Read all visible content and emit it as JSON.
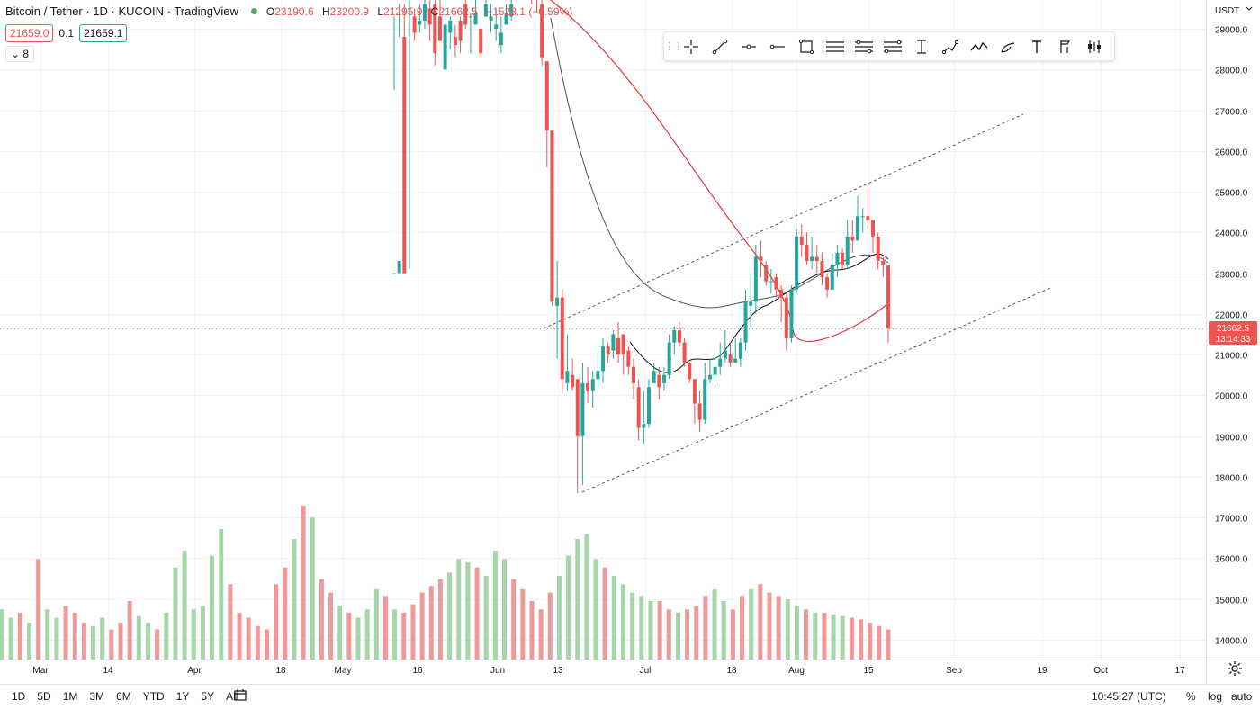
{
  "header": {
    "symbol": "Bitcoin / Tether · 1D · KUCOIN · TradingView",
    "open_label": "O",
    "open": "23190.6",
    "high_label": "H",
    "high": "23200.9",
    "low_label": "L",
    "low": "21295.9",
    "close_label": "C",
    "close": "21662.5",
    "change": "−1528.1 (−6.59%)",
    "sell_price": "21659.0",
    "spread": "0.1",
    "buy_price": "21659.1",
    "indicators_toggle": "8"
  },
  "toolbar": {
    "tools": [
      "crosshair-icon",
      "trend-line-icon",
      "horizontal-ray-icon",
      "horizontal-line-icon",
      "rectangle-icon",
      "parallel-channel-icon",
      "regression-trend-icon",
      "fib-retracement-icon",
      "price-range-icon",
      "path-icon",
      "polyline-icon",
      "brush-icon",
      "text-icon",
      "long-position-icon",
      "bar-pattern-icon"
    ]
  },
  "price_axis": {
    "currency": "USDT",
    "current_price": "21662.5",
    "countdown": "13:14:33"
  },
  "time_axis": {
    "labels": [
      "Mar",
      "14",
      "Apr",
      "18",
      "May",
      "16",
      "Jun",
      "13",
      "Jul",
      "18",
      "Aug",
      "15",
      "Sep",
      "19",
      "Oct",
      "17"
    ]
  },
  "bottom_bar": {
    "timeframes": [
      "1D",
      "5D",
      "1M",
      "3M",
      "6M",
      "YTD",
      "1Y",
      "5Y",
      "All"
    ],
    "clock": "10:45:27 (UTC)",
    "percent": "%",
    "log": "log",
    "auto": "auto"
  },
  "colors": {
    "up": "#26a69a",
    "down": "#ef5350",
    "volume_up": "#a5d6a7",
    "volume_down": "#ef9a9a",
    "ma_red": "#e53935",
    "ma_dark": "#555555",
    "ma_black": "#111111"
  },
  "chart_data": {
    "type": "candlestick",
    "title": "",
    "y_axis": {
      "min": 13800,
      "max": 29300,
      "ticks": [
        14000,
        15000,
        16000,
        17000,
        18000,
        19000,
        20000,
        21000,
        22000,
        23000,
        24000,
        25000,
        26000,
        27000,
        28000,
        29000
      ]
    },
    "candles": [
      [
        23000,
        23000,
        27500,
        29300
      ],
      [
        23000,
        23300,
        28800,
        29600
      ],
      [
        28800,
        23000,
        29600,
        23000
      ],
      [
        29500,
        29500,
        30000,
        23100
      ],
      [
        29300,
        28900,
        29500,
        28700
      ],
      [
        29100,
        29200,
        29600,
        28900
      ],
      [
        29200,
        29600,
        29900,
        29000
      ],
      [
        29500,
        29100,
        29700,
        28700
      ],
      [
        29600,
        28400,
        29700,
        28100
      ],
      [
        29300,
        28700,
        30200,
        28700
      ],
      [
        28000,
        29100,
        29800,
        28000
      ],
      [
        28900,
        29200,
        29300,
        28500
      ],
      [
        28800,
        28600,
        29100,
        28300
      ],
      [
        29200,
        28700,
        29300,
        28400
      ],
      [
        29600,
        29100,
        30100,
        29000
      ],
      [
        29300,
        29300,
        29400,
        28400
      ],
      [
        29100,
        29400,
        29800,
        29100
      ],
      [
        29000,
        28400,
        29000,
        28300
      ],
      [
        29300,
        29600,
        30000,
        29300
      ],
      [
        29200,
        29300,
        29600,
        28900
      ],
      [
        29000,
        29100,
        29500,
        28700
      ],
      [
        28600,
        28900,
        29300,
        28400
      ],
      [
        29100,
        29400,
        29600,
        29100
      ],
      [
        29300,
        29600,
        29800,
        29200
      ],
      [
        29800,
        29800,
        30200,
        29700
      ],
      [
        30500,
        30100,
        31500,
        29900
      ],
      [
        30300,
        29900,
        30400,
        29800
      ],
      [
        31400,
        30100,
        31700,
        29600
      ],
      [
        30000,
        29800,
        30200,
        29400
      ],
      [
        29600,
        28300,
        29800,
        28100
      ],
      [
        28200,
        26500,
        28200,
        25600
      ],
      [
        26500,
        22300,
        26500,
        22200
      ],
      [
        22200,
        22400,
        23300,
        20900
      ],
      [
        22400,
        20400,
        22600,
        20100
      ],
      [
        20300,
        20600,
        21500,
        20100
      ],
      [
        20500,
        20200,
        20900,
        20100
      ],
      [
        20400,
        19000,
        20400,
        17600
      ],
      [
        19000,
        20300,
        20800,
        17800
      ],
      [
        20300,
        20100,
        20700,
        19800
      ],
      [
        20100,
        20400,
        20600,
        19700
      ],
      [
        20400,
        20600,
        21200,
        20200
      ],
      [
        20600,
        21200,
        21400,
        20300
      ],
      [
        21200,
        21000,
        21300,
        20800
      ],
      [
        21100,
        21500,
        21600,
        20900
      ],
      [
        21400,
        21000,
        21800,
        20800
      ],
      [
        21500,
        21000,
        21500,
        20500
      ],
      [
        21100,
        20700,
        21200,
        20500
      ],
      [
        20700,
        20300,
        20900,
        19900
      ],
      [
        20200,
        19200,
        20400,
        18900
      ],
      [
        19200,
        19300,
        20100,
        18800
      ],
      [
        19300,
        20200,
        20400,
        19200
      ],
      [
        20300,
        20600,
        20800,
        20300
      ],
      [
        20500,
        20200,
        20700,
        19900
      ],
      [
        20300,
        20500,
        20700,
        20100
      ],
      [
        20500,
        21300,
        21500,
        20400
      ],
      [
        21300,
        21600,
        21700,
        21000
      ],
      [
        21600,
        21300,
        21800,
        21200
      ],
      [
        21300,
        20800,
        21400,
        20700
      ],
      [
        20800,
        20400,
        20800,
        20300
      ],
      [
        20400,
        19800,
        20400,
        19300
      ],
      [
        19800,
        19400,
        20100,
        19100
      ],
      [
        19400,
        20400,
        20800,
        19300
      ],
      [
        20400,
        20500,
        20900,
        20300
      ],
      [
        20500,
        20700,
        21000,
        20300
      ],
      [
        20700,
        20900,
        21300,
        20500
      ],
      [
        20900,
        21100,
        21600,
        20800
      ],
      [
        21000,
        20800,
        21300,
        20700
      ],
      [
        20800,
        20900,
        21400,
        20800
      ],
      [
        20900,
        21300,
        21400,
        20700
      ],
      [
        21300,
        22300,
        22600,
        21100
      ],
      [
        22200,
        22300,
        23000,
        21700
      ],
      [
        22300,
        23400,
        23700,
        22000
      ],
      [
        23400,
        23300,
        23800,
        22900
      ],
      [
        23200,
        22800,
        23300,
        22700
      ],
      [
        22800,
        22800,
        23100,
        22500
      ],
      [
        22900,
        22600,
        23000,
        22400
      ],
      [
        22600,
        22400,
        22700,
        21800
      ],
      [
        22400,
        21400,
        22500,
        21100
      ],
      [
        21400,
        22600,
        22700,
        21300
      ],
      [
        22600,
        23900,
        24100,
        22500
      ],
      [
        23900,
        23700,
        24200,
        23400
      ],
      [
        23700,
        23300,
        24000,
        23200
      ],
      [
        23300,
        23400,
        23900,
        23100
      ],
      [
        23400,
        23300,
        23700,
        23000
      ],
      [
        23300,
        22900,
        23500,
        22700
      ],
      [
        22900,
        22600,
        23000,
        22400
      ],
      [
        22600,
        23200,
        23500,
        22600
      ],
      [
        23200,
        23500,
        23700,
        22900
      ],
      [
        23500,
        23200,
        23600,
        23100
      ],
      [
        23200,
        23900,
        24300,
        23100
      ],
      [
        23900,
        23800,
        24300,
        23500
      ],
      [
        23800,
        24400,
        24900,
        24300
      ],
      [
        24400,
        24400,
        24600,
        24000
      ],
      [
        24400,
        24300,
        25100,
        24100
      ],
      [
        24300,
        23900,
        24200,
        23500
      ],
      [
        23900,
        23300,
        24000,
        23100
      ],
      [
        23300,
        23200,
        23400,
        22900
      ],
      [
        23200,
        21662.5,
        23200.9,
        21295.9
      ]
    ],
    "volume": [
      0.3,
      0.25,
      0.28,
      0.22,
      0.6,
      0.3,
      0.25,
      0.32,
      0.28,
      0.22,
      0.2,
      0.25,
      0.18,
      0.22,
      0.35,
      0.26,
      0.22,
      0.18,
      0.28,
      0.55,
      0.65,
      0.3,
      0.32,
      0.62,
      0.78,
      0.45,
      0.28,
      0.25,
      0.2,
      0.18,
      0.45,
      0.55,
      0.72,
      0.92,
      0.85,
      0.48,
      0.4,
      0.32,
      0.28,
      0.25,
      0.3,
      0.42,
      0.38,
      0.3,
      0.28,
      0.33,
      0.4,
      0.44,
      0.48,
      0.52,
      0.6,
      0.58,
      0.55,
      0.5,
      0.65,
      0.6,
      0.48,
      0.42,
      0.35,
      0.3,
      0.4,
      0.5,
      0.62,
      0.72,
      0.75,
      0.6,
      0.55,
      0.5,
      0.45,
      0.4,
      0.38,
      0.35,
      0.35,
      0.3,
      0.28,
      0.3,
      0.32,
      0.38,
      0.42,
      0.35,
      0.3,
      0.38,
      0.42,
      0.45,
      0.4,
      0.38,
      0.36,
      0.32,
      0.3,
      0.28,
      0.28,
      0.27,
      0.26,
      0.25,
      0.24,
      0.22,
      0.2,
      0.18
    ]
  }
}
